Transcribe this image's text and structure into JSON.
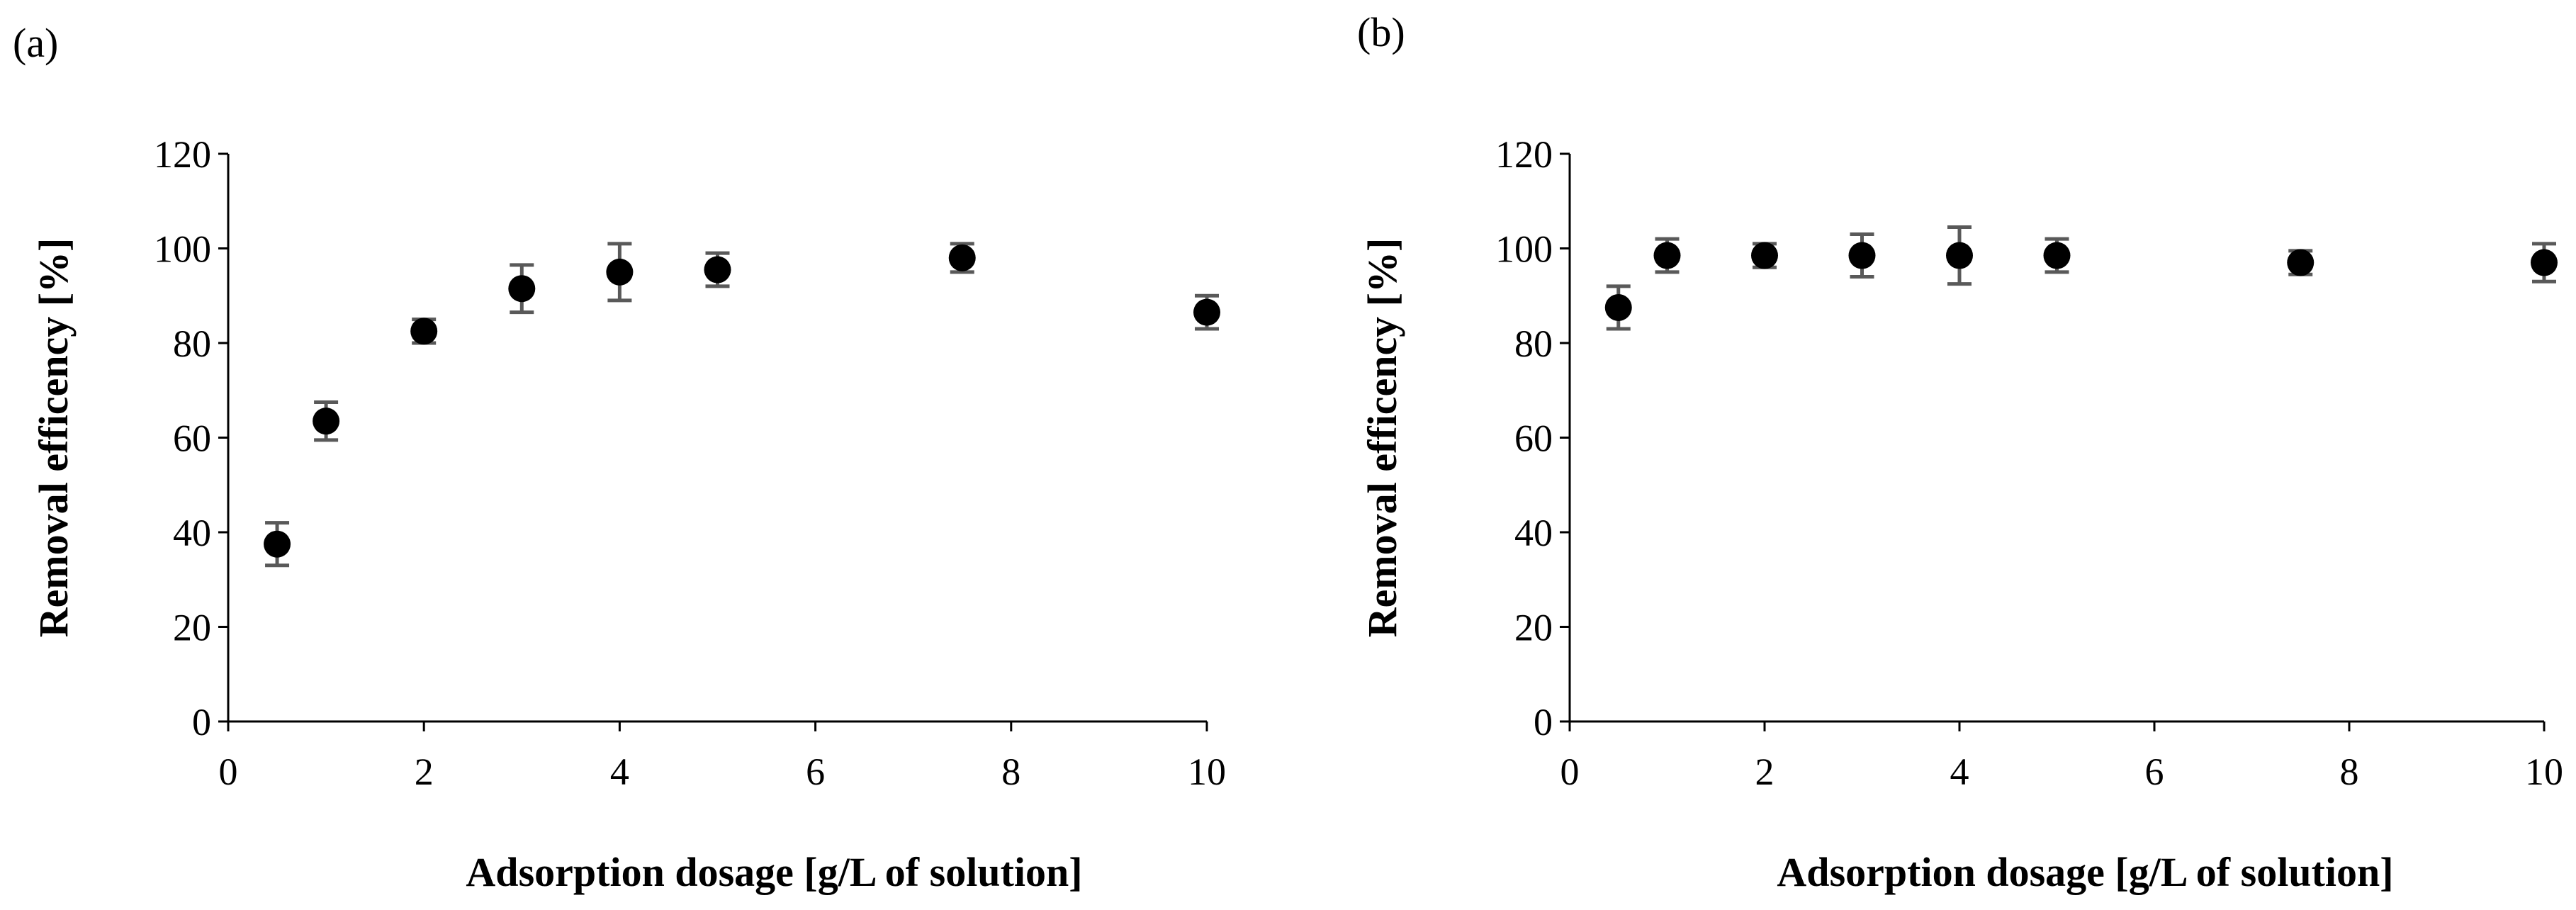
{
  "chart_data": [
    {
      "panel": "(a)",
      "type": "scatter",
      "title": "",
      "xlabel": "Adsorption dosage [g/L of solution]",
      "ylabel": "Removal efficency [%]",
      "xlim": [
        0,
        10
      ],
      "ylim": [
        0,
        120
      ],
      "xticks": [
        0,
        2,
        4,
        6,
        8,
        10
      ],
      "yticks": [
        0,
        20,
        40,
        60,
        80,
        100,
        120
      ],
      "grid": false,
      "legend": "none",
      "marker_color": "#000000",
      "errorbar_color": "#595959",
      "points": [
        {
          "x": 0.5,
          "y": 37.5,
          "err": 4.5
        },
        {
          "x": 1,
          "y": 63.5,
          "err": 4
        },
        {
          "x": 2,
          "y": 82.5,
          "err": 2.5
        },
        {
          "x": 3,
          "y": 91.5,
          "err": 5
        },
        {
          "x": 4,
          "y": 95,
          "err": 6
        },
        {
          "x": 5,
          "y": 95.5,
          "err": 3.5
        },
        {
          "x": 7.5,
          "y": 98,
          "err": 3
        },
        {
          "x": 10,
          "y": 86.5,
          "err": 3.5
        }
      ]
    },
    {
      "panel": "(b)",
      "type": "scatter",
      "title": "",
      "xlabel": "Adsorption dosage [g/L of solution]",
      "ylabel": "Removal efficency [%]",
      "xlim": [
        0,
        10
      ],
      "ylim": [
        0,
        120
      ],
      "xticks": [
        0,
        2,
        4,
        6,
        8,
        10
      ],
      "yticks": [
        0,
        20,
        40,
        60,
        80,
        100,
        120
      ],
      "grid": false,
      "legend": "none",
      "marker_color": "#000000",
      "errorbar_color": "#595959",
      "points": [
        {
          "x": 0.5,
          "y": 87.5,
          "err": 4.5
        },
        {
          "x": 1,
          "y": 98.5,
          "err": 3.5
        },
        {
          "x": 2,
          "y": 98.5,
          "err": 2.5
        },
        {
          "x": 3,
          "y": 98.5,
          "err": 4.5
        },
        {
          "x": 4,
          "y": 98.5,
          "err": 6
        },
        {
          "x": 5,
          "y": 98.5,
          "err": 3.5
        },
        {
          "x": 7.5,
          "y": 97,
          "err": 2.5
        },
        {
          "x": 10,
          "y": 97,
          "err": 4
        }
      ]
    }
  ]
}
